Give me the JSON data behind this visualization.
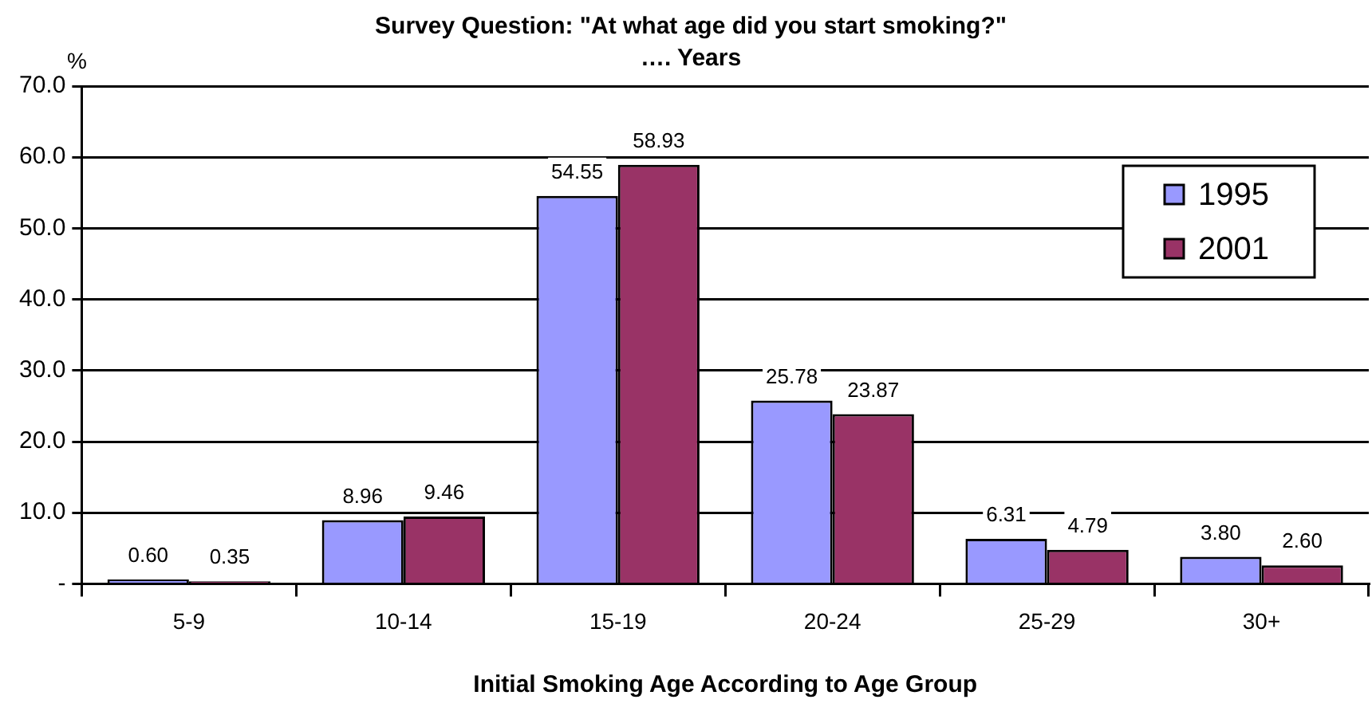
{
  "chart_data": {
    "type": "bar",
    "title": "Survey Question: \"At what age did you start smoking?\"",
    "subtitle": "…. Years",
    "xlabel": "Initial Smoking Age According to Age Group",
    "ylabel": "%",
    "categories": [
      "5-9",
      "10-14",
      "15-19",
      "20-24",
      "25-29",
      "30+"
    ],
    "series": [
      {
        "name": "1995",
        "color": "#9999ff",
        "values": [
          0.6,
          8.96,
          54.55,
          25.78,
          6.31,
          3.8
        ],
        "value_labels": [
          "0.60",
          "8.96",
          "54.55",
          "25.78",
          "6.31",
          "3.80"
        ]
      },
      {
        "name": "2001",
        "color": "#993366",
        "values": [
          0.35,
          9.46,
          58.93,
          23.87,
          4.79,
          2.6
        ],
        "value_labels": [
          "0.35",
          "9.46",
          "58.93",
          "23.87",
          "4.79",
          "2.60"
        ]
      }
    ],
    "ylim": [
      0,
      70
    ],
    "yticks": [
      {
        "value": 0,
        "label": "-"
      },
      {
        "value": 10,
        "label": "10.0"
      },
      {
        "value": 20,
        "label": "20.0"
      },
      {
        "value": 30,
        "label": "30.0"
      },
      {
        "value": 40,
        "label": "40.0"
      },
      {
        "value": 50,
        "label": "50.0"
      },
      {
        "value": 60,
        "label": "60.0"
      },
      {
        "value": 70,
        "label": "70.0"
      }
    ],
    "grid": "y",
    "legend": "top right"
  }
}
